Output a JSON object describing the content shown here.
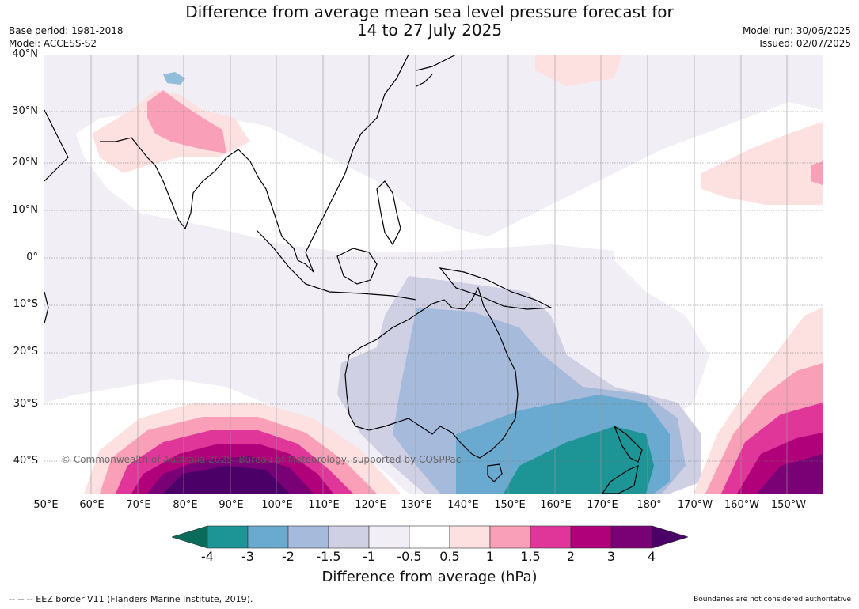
{
  "header": {
    "title_line1": "Difference from average mean sea level pressure forecast for",
    "title_line2": "14 to 27 July 2025",
    "base_period": "Base period: 1981-2018",
    "model": "Model: ACCESS-S2",
    "model_run": "Model run: 30/06/2025",
    "issued": "Issued: 02/07/2025"
  },
  "map": {
    "lat_labels": [
      "40°N",
      "30°N",
      "20°N",
      "10°N",
      "0°",
      "10°S",
      "20°S",
      "30°S",
      "40°S"
    ],
    "lon_labels": [
      "50°E",
      "60°E",
      "70°E",
      "80°E",
      "90°E",
      "100°E",
      "110°E",
      "120°E",
      "130°E",
      "140°E",
      "150°E",
      "160°E",
      "170°E",
      "180°",
      "170°W",
      "160°W",
      "150°W"
    ],
    "copyright": "© Commonwealth of Australia 2025, Bureau of Meteorology, supported by COSPPac"
  },
  "colorbar": {
    "labels": [
      "-4",
      "-3",
      "-2",
      "-1.5",
      "-1",
      "-0.5",
      "0.5",
      "1",
      "1.5",
      "2",
      "3",
      "4"
    ],
    "colors": {
      "below": "#0b6b5a",
      "bins": [
        "#1d9496",
        "#6aaad0",
        "#a6bbdc",
        "#d0d0e4",
        "#f1eef6",
        "#ffffff",
        "#fde0e0",
        "#f9a0b8",
        "#e0369a",
        "#b0007a",
        "#7a0075"
      ],
      "above": "#4a0066"
    },
    "title": "Difference from average (hPa)"
  },
  "footer": {
    "eez_note": "--  --  -- EEZ border V11 (Flanders Marine Institute, 2019).",
    "disclaimer": "Boundaries are not considered authoritative"
  }
}
